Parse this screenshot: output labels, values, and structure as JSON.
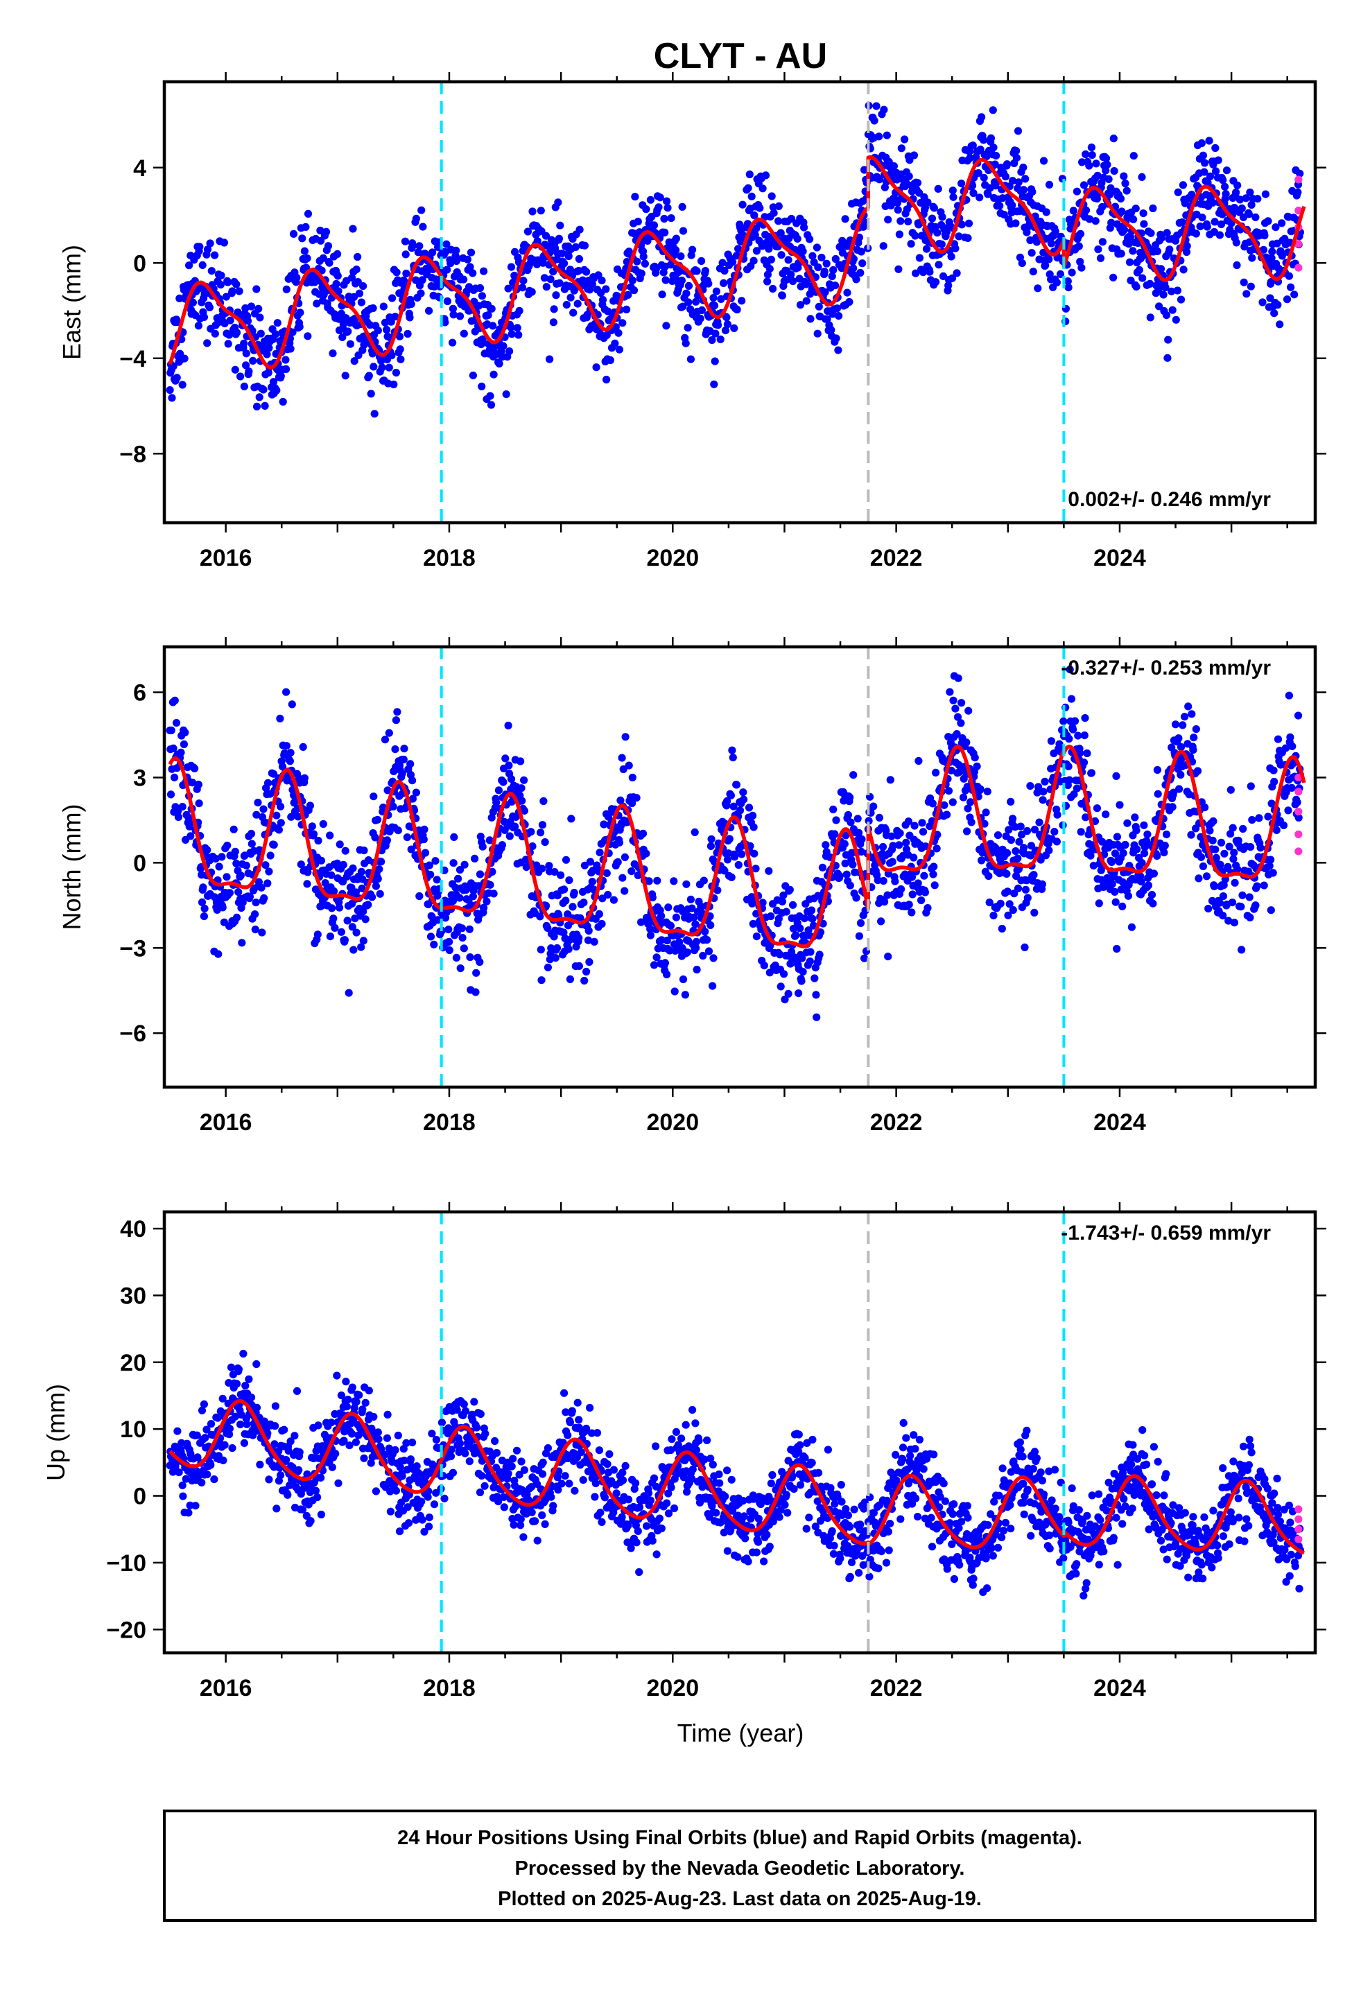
{
  "title": "CLYT - AU",
  "xlabel": "Time (year)",
  "caption": [
    "24 Hour Positions Using Final Orbits (blue) and Rapid Orbits (magenta).",
    "Processed by the Nevada Geodetic Laboratory.",
    "Plotted on 2025-Aug-23. Last data on 2025-Aug-19."
  ],
  "colors": {
    "final": "#0000ff",
    "rapid": "#ff33cc",
    "model": "#ff0000",
    "equipment_change": "#00e5ff",
    "earthquake": "#bbbbbb"
  },
  "chart_data": [
    {
      "type": "scatter",
      "component": "east",
      "ylabel": "East (mm)",
      "rate_text": "0.002+/- 0.246 mm/yr",
      "xlim": [
        2015.45,
        2025.75
      ],
      "ylim": [
        -10.9,
        7.6
      ],
      "x_ticks": [
        2016,
        2018,
        2020,
        2022,
        2024
      ],
      "y_ticks": [
        -8,
        -4,
        0,
        4
      ],
      "y_tick_labels": [
        "−8",
        "−4",
        "0",
        "4"
      ],
      "vlines_cyan": [
        2017.93,
        2023.5
      ],
      "vlines_gray": [
        2021.75
      ],
      "model": {
        "trend_segments": [
          [
            2015.5,
            2021.75,
            -2.8,
            0.5
          ],
          [
            2021.75,
            2023.5,
            2.6,
            2.4
          ],
          [
            2023.5,
            2025.65,
            1.3,
            1.4
          ]
        ],
        "annual_amp": 1.7,
        "annual_peak": 0.85,
        "semiannual_amp": 0.55,
        "semiannual_phase": 0.2
      },
      "scatter_sigma": 1.05,
      "rapid_points": [
        [
          2025.6,
          3.5
        ],
        [
          2025.6,
          2.2
        ],
        [
          2025.6,
          1.5
        ],
        [
          2025.6,
          0.8
        ],
        [
          2025.6,
          -0.2
        ]
      ]
    },
    {
      "type": "scatter",
      "component": "north",
      "ylabel": "North (mm)",
      "rate_text": "-0.327+/- 0.253 mm/yr",
      "xlim": [
        2015.45,
        2025.75
      ],
      "ylim": [
        -7.9,
        7.6
      ],
      "x_ticks": [
        2016,
        2018,
        2020,
        2022,
        2024
      ],
      "y_ticks": [
        -6,
        -3,
        0,
        3,
        6
      ],
      "y_tick_labels": [
        "−6",
        "−3",
        "0",
        "3",
        "6"
      ],
      "vlines_cyan": [
        2017.93,
        2023.5
      ],
      "vlines_gray": [
        2021.75
      ],
      "model": {
        "trend_segments": [
          [
            2015.5,
            2021.75,
            0.9,
            -1.7
          ],
          [
            2021.75,
            2023.5,
            1.2,
            1.4
          ],
          [
            2023.5,
            2025.65,
            1.3,
            0.9
          ]
        ],
        "annual_amp": 2.1,
        "annual_peak": 0.55,
        "semiannual_amp": 0.7,
        "semiannual_phase": 0.05
      },
      "scatter_sigma": 1.0,
      "rapid_points": [
        [
          2025.6,
          3.0
        ],
        [
          2025.6,
          2.5
        ],
        [
          2025.6,
          1.8
        ],
        [
          2025.6,
          1.0
        ],
        [
          2025.6,
          0.4
        ]
      ]
    },
    {
      "type": "scatter",
      "component": "up",
      "ylabel": "Up (mm)",
      "rate_text": "-1.743+/- 0.659 mm/yr",
      "xlim": [
        2015.45,
        2025.75
      ],
      "ylim": [
        -23.5,
        42.5
      ],
      "x_ticks": [
        2016,
        2018,
        2020,
        2022,
        2024
      ],
      "y_ticks": [
        -20,
        -10,
        0,
        10,
        20,
        30,
        40
      ],
      "y_tick_labels": [
        "−20",
        "−10",
        "0",
        "10",
        "20",
        "30",
        "40"
      ],
      "vlines_cyan": [
        2017.93,
        2023.5
      ],
      "vlines_gray": [
        2021.75
      ],
      "model": {
        "trend_segments": [
          [
            2015.5,
            2021.75,
            9.5,
            -2.5
          ],
          [
            2021.75,
            2023.5,
            -2.8,
            -3.2
          ],
          [
            2023.5,
            2025.65,
            -2.5,
            -4.0
          ]
        ],
        "annual_amp": 5.2,
        "annual_peak": 0.15,
        "semiannual_amp": 0.8,
        "semiannual_phase": 0.1
      },
      "scatter_sigma": 3.0,
      "rapid_points": [
        [
          2025.6,
          -2.0
        ],
        [
          2025.6,
          -3.5
        ],
        [
          2025.6,
          -5.0
        ],
        [
          2025.6,
          -6.5
        ]
      ]
    }
  ]
}
